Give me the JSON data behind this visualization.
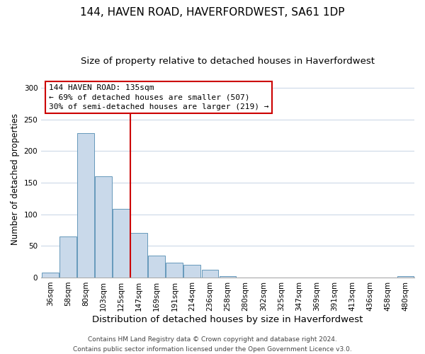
{
  "title": "144, HAVEN ROAD, HAVERFORDWEST, SA61 1DP",
  "subtitle": "Size of property relative to detached houses in Haverfordwest",
  "xlabel": "Distribution of detached houses by size in Haverfordwest",
  "ylabel": "Number of detached properties",
  "bar_labels": [
    "36sqm",
    "58sqm",
    "80sqm",
    "103sqm",
    "125sqm",
    "147sqm",
    "169sqm",
    "191sqm",
    "214sqm",
    "236sqm",
    "258sqm",
    "280sqm",
    "302sqm",
    "325sqm",
    "347sqm",
    "369sqm",
    "391sqm",
    "413sqm",
    "436sqm",
    "458sqm",
    "480sqm"
  ],
  "bar_heights": [
    8,
    65,
    228,
    160,
    108,
    70,
    35,
    24,
    20,
    12,
    2,
    0,
    0,
    0,
    0,
    0,
    0,
    0,
    0,
    0,
    2
  ],
  "bar_color": "#c9d9ea",
  "bar_edge_color": "#6699bb",
  "vline_color": "#cc0000",
  "annotation_text": "144 HAVEN ROAD: 135sqm\n← 69% of detached houses are smaller (507)\n30% of semi-detached houses are larger (219) →",
  "annotation_box_color": "#ffffff",
  "annotation_box_edge": "#cc0000",
  "ylim": [
    0,
    310
  ],
  "yticks": [
    0,
    50,
    100,
    150,
    200,
    250,
    300
  ],
  "footer_line1": "Contains HM Land Registry data © Crown copyright and database right 2024.",
  "footer_line2": "Contains public sector information licensed under the Open Government Licence v3.0.",
  "bg_color": "#ffffff",
  "grid_color": "#ccd9e8",
  "title_fontsize": 11,
  "subtitle_fontsize": 9.5,
  "xlabel_fontsize": 9.5,
  "ylabel_fontsize": 8.5,
  "tick_fontsize": 7.5,
  "annot_fontsize": 8,
  "footer_fontsize": 6.5
}
